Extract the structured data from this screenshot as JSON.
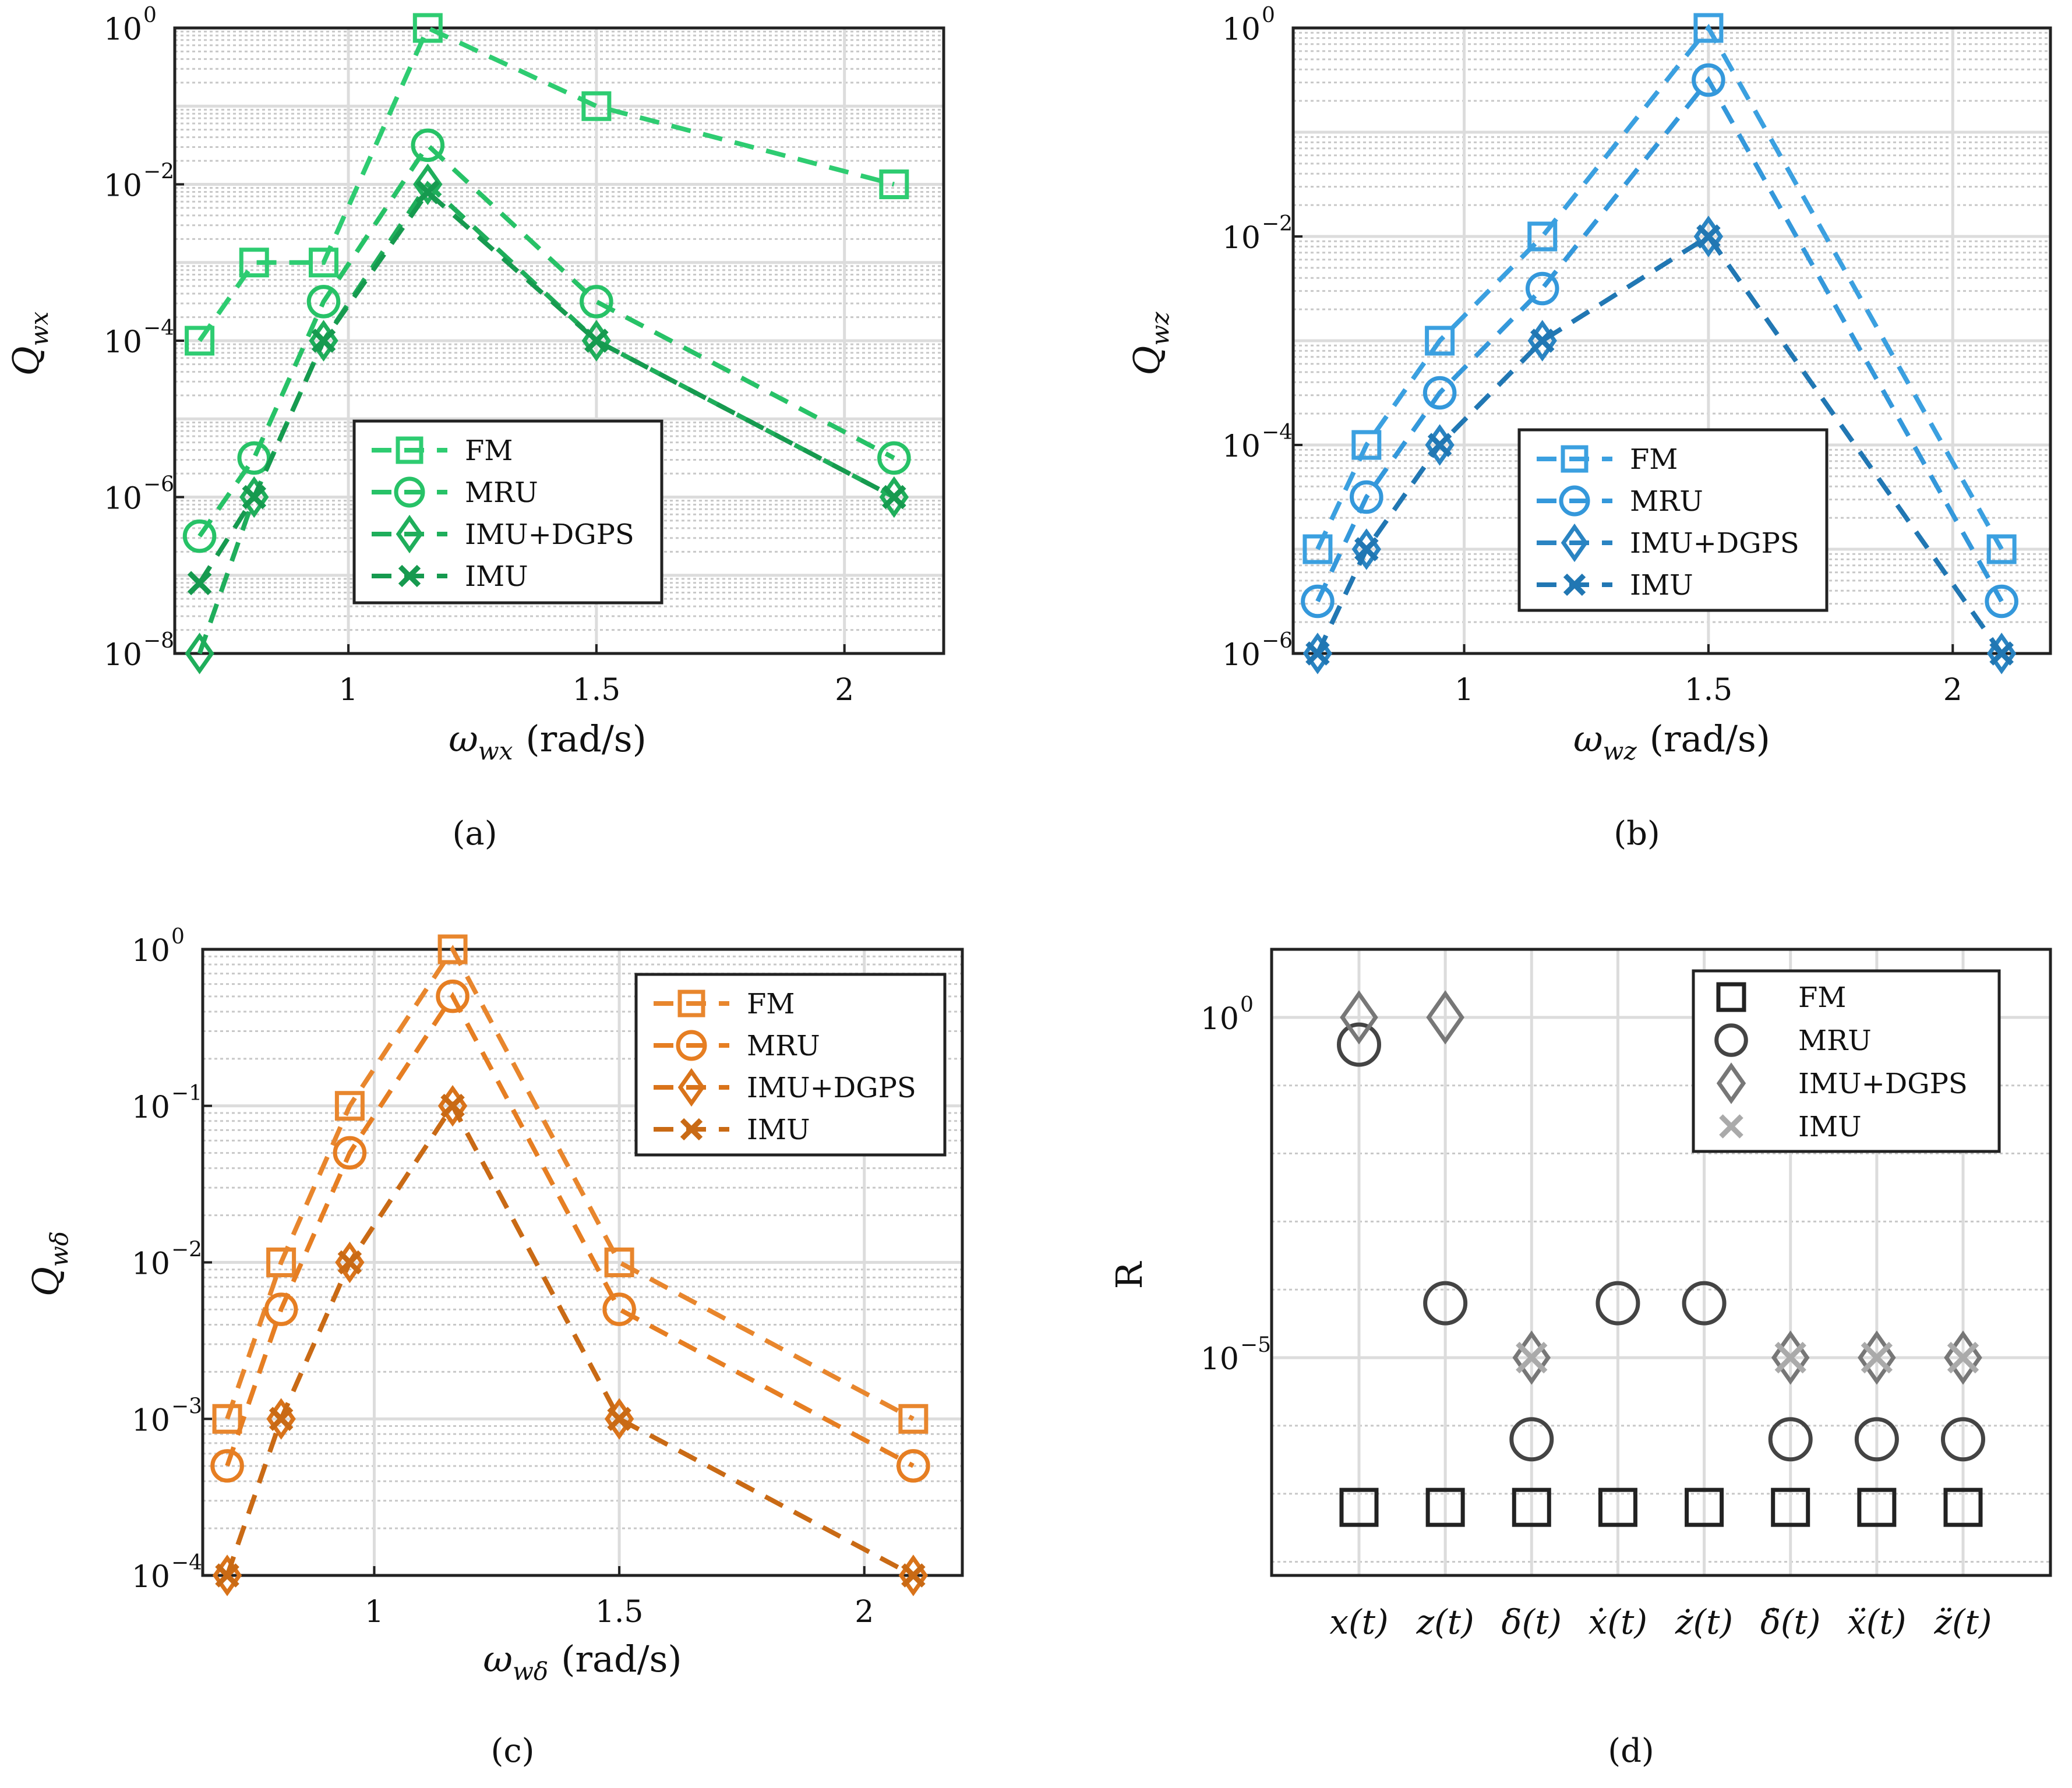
{
  "figure": {
    "captions": [
      "(a)",
      "(b)",
      "(c)",
      "(d)"
    ]
  },
  "chart_data": [
    {
      "id": "a",
      "type": "line",
      "scale": "log",
      "ylabel": "Q_wx",
      "ylabel_main": "Q",
      "ylabel_sub": "wx",
      "xlabel_sym": "ω",
      "xlabel_sub": "wx",
      "xlabel_unit": "(rad/s)",
      "caption": "(a)",
      "xlim": [
        0.65,
        2.2
      ],
      "ylim_exp": [
        -8,
        0
      ],
      "xticks": [
        1,
        1.5,
        2
      ],
      "xtick_labels": [
        "1",
        "1.5",
        "2"
      ],
      "yticks_exp": [
        -8,
        -6,
        -4,
        -2,
        0
      ],
      "ytick_labels": [
        "10",
        "10",
        "10",
        "10",
        "10"
      ],
      "ytick_sups": [
        "−8",
        "−6",
        "−4",
        "−2",
        "0"
      ],
      "legend_position": "center",
      "color": "#2ecc71",
      "series": [
        {
          "name": "FM",
          "marker": "square",
          "color": "#2ecc71",
          "x": [
            0.7,
            0.81,
            0.95,
            1.16,
            1.5,
            2.1
          ],
          "y_exp": [
            -4,
            -3,
            -3,
            0,
            -1,
            -2
          ]
        },
        {
          "name": "MRU",
          "marker": "circle",
          "color": "#27c267",
          "x": [
            0.7,
            0.81,
            0.95,
            1.16,
            1.5,
            2.1
          ],
          "y_exp": [
            -6.5,
            -5.5,
            -3.5,
            -1.5,
            -3.5,
            -5.5
          ]
        },
        {
          "name": "IMU+DGPS",
          "marker": "diamond",
          "color": "#1fae5b",
          "x": [
            0.7,
            0.81,
            0.95,
            1.16,
            1.5,
            2.1
          ],
          "y_exp": [
            -8,
            -6,
            -4,
            -2,
            -4,
            -6
          ]
        },
        {
          "name": "IMU",
          "marker": "x",
          "color": "#169a4f",
          "x": [
            0.7,
            0.81,
            0.95,
            1.16,
            1.5,
            2.1
          ],
          "y_exp": [
            -7.1,
            -6,
            -4,
            -2.1,
            -4,
            -6
          ]
        }
      ]
    },
    {
      "id": "b",
      "type": "line",
      "scale": "log",
      "ylabel": "Q_wz",
      "ylabel_main": "Q",
      "ylabel_sub": "wz",
      "xlabel_sym": "ω",
      "xlabel_sub": "wz",
      "xlabel_unit": "(rad/s)",
      "caption": "(b)",
      "xlim": [
        0.65,
        2.2
      ],
      "ylim_exp": [
        -6,
        0
      ],
      "xticks": [
        1,
        1.5,
        2
      ],
      "xtick_labels": [
        "1",
        "1.5",
        "2"
      ],
      "yticks_exp": [
        -6,
        -4,
        -2,
        0
      ],
      "ytick_labels": [
        "10",
        "10",
        "10",
        "10"
      ],
      "ytick_sups": [
        "−6",
        "−4",
        "−2",
        "0"
      ],
      "legend_position": "center",
      "color": "#3498db",
      "series": [
        {
          "name": "FM",
          "marker": "square",
          "color": "#3ba0e0",
          "x": [
            0.7,
            0.8,
            0.95,
            1.16,
            1.5,
            2.1
          ],
          "y_exp": [
            -5,
            -4,
            -3,
            -2,
            0,
            -5
          ]
        },
        {
          "name": "MRU",
          "marker": "circle",
          "color": "#3498db",
          "x": [
            0.7,
            0.8,
            0.95,
            1.16,
            1.5,
            2.1
          ],
          "y_exp": [
            -5.5,
            -4.5,
            -3.5,
            -2.5,
            -0.5,
            -5.5
          ]
        },
        {
          "name": "IMU+DGPS",
          "marker": "diamond",
          "color": "#2a84c2",
          "x": [
            0.7,
            0.8,
            0.95,
            1.16,
            1.5,
            2.1
          ],
          "y_exp": [
            -6,
            -5,
            -4,
            -3,
            -2,
            -6
          ]
        },
        {
          "name": "IMU",
          "marker": "x",
          "color": "#2177b3",
          "x": [
            0.7,
            0.8,
            0.95,
            1.16,
            1.5,
            2.1
          ],
          "y_exp": [
            -6,
            -5,
            -4,
            -3,
            -2,
            -6
          ]
        }
      ]
    },
    {
      "id": "c",
      "type": "line",
      "scale": "log",
      "ylabel": "Q_wδ",
      "ylabel_main": "Q",
      "ylabel_sub": "wδ",
      "xlabel_sym": "ω",
      "xlabel_sub": "wδ",
      "xlabel_unit": "(rad/s)",
      "caption": "(c)",
      "xlim": [
        0.65,
        2.2
      ],
      "ylim_exp": [
        -4,
        0
      ],
      "xticks": [
        1,
        1.5,
        2
      ],
      "xtick_labels": [
        "1",
        "1.5",
        "2"
      ],
      "yticks_exp": [
        -4,
        -3,
        -2,
        -1,
        0
      ],
      "ytick_labels": [
        "10",
        "10",
        "10",
        "10",
        "10"
      ],
      "ytick_sups": [
        "−4",
        "−3",
        "−2",
        "−1",
        "0"
      ],
      "legend_position": "top-right",
      "color": "#e67e22",
      "series": [
        {
          "name": "FM",
          "marker": "square",
          "color": "#e8862d",
          "x": [
            0.7,
            0.81,
            0.95,
            1.16,
            1.5,
            2.1
          ],
          "y_exp": [
            -3,
            -2,
            -1,
            0,
            -2,
            -3
          ]
        },
        {
          "name": "MRU",
          "marker": "circle",
          "color": "#e67e22",
          "x": [
            0.7,
            0.81,
            0.95,
            1.16,
            1.5,
            2.1
          ],
          "y_exp": [
            -3.3,
            -2.3,
            -1.3,
            -0.3,
            -2.3,
            -3.3
          ]
        },
        {
          "name": "IMU+DGPS",
          "marker": "diamond",
          "color": "#d9731a",
          "x": [
            0.7,
            0.81,
            0.95,
            1.16,
            1.5,
            2.1
          ],
          "y_exp": [
            -4,
            -3,
            -2,
            -1,
            -3,
            -4
          ]
        },
        {
          "name": "IMU",
          "marker": "x",
          "color": "#c96a15",
          "x": [
            0.7,
            0.81,
            0.95,
            1.16,
            1.5,
            2.1
          ],
          "y_exp": [
            -4,
            -3,
            -2,
            -1,
            -3,
            -4
          ]
        }
      ]
    },
    {
      "id": "d",
      "type": "scatter",
      "scale": "log",
      "ylabel": "R",
      "caption": "(d)",
      "categories": [
        "x(t)",
        "z(t)",
        "δ(t)",
        "ẋ(t)",
        "ż(t)",
        "δ̇(t)",
        "ẍ(t)",
        "z̈(t)"
      ],
      "ylim_exp": [
        -8.2,
        1
      ],
      "yticks_exp": [
        -5,
        0
      ],
      "ytick_labels": [
        "10",
        "10"
      ],
      "ytick_sups": [
        "−5",
        "0"
      ],
      "legend_position": "top-right",
      "series": [
        {
          "name": "FM",
          "marker": "square",
          "color": "#222222",
          "y_exp": [
            -7.2,
            -7.2,
            -7.2,
            -7.2,
            -7.2,
            -7.2,
            -7.2,
            -7.2
          ]
        },
        {
          "name": "MRU",
          "marker": "circle",
          "color": "#444444",
          "y_exp": [
            -0.4,
            -4.2,
            -6.2,
            -4.2,
            -4.2,
            -6.2,
            -6.2,
            -6.2
          ]
        },
        {
          "name": "IMU+DGPS",
          "marker": "diamond",
          "color": "#777777",
          "y_exp": [
            0,
            0,
            -5,
            null,
            null,
            -5,
            -5,
            -5
          ]
        },
        {
          "name": "IMU",
          "marker": "x",
          "color": "#aaaaaa",
          "y_exp": [
            null,
            null,
            -5,
            null,
            null,
            -5,
            -5,
            -5
          ]
        }
      ]
    }
  ]
}
